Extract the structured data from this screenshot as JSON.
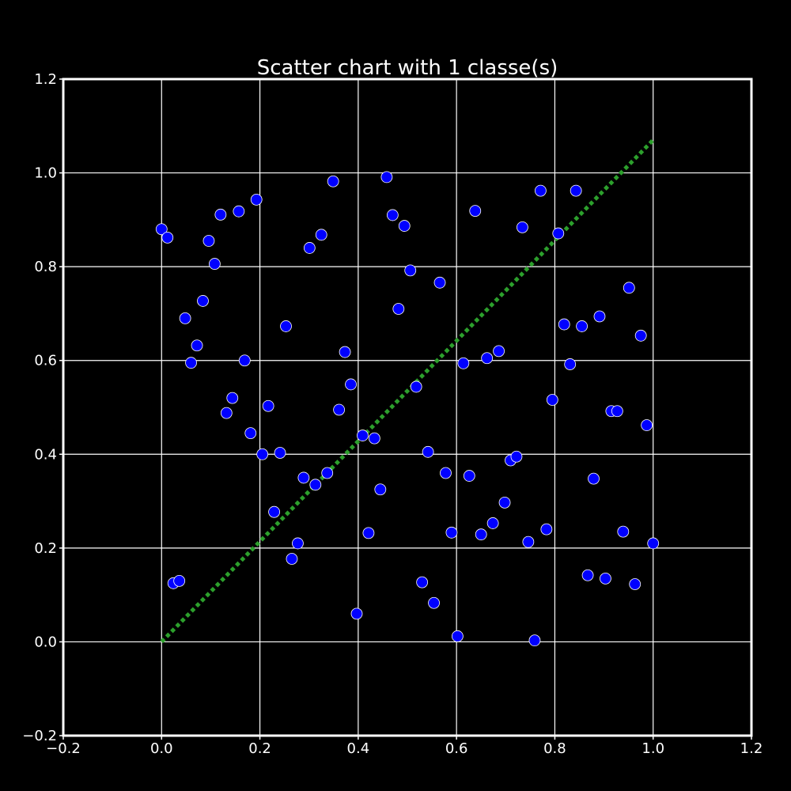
{
  "chart_data": {
    "type": "scatter",
    "title": "Scatter chart with 1 classe(s)",
    "xlabel": "",
    "ylabel": "",
    "xlim": [
      -0.2,
      1.2
    ],
    "ylim": [
      -0.2,
      1.2
    ],
    "grid": true,
    "x_ticks": [
      "−0.2",
      "0.0",
      "0.2",
      "0.4",
      "0.6",
      "0.8",
      "1.0",
      "1.2"
    ],
    "y_ticks": [
      "−0.2",
      "0.0",
      "0.2",
      "0.4",
      "0.6",
      "0.8",
      "1.0",
      "1.2"
    ],
    "colors": {
      "background": "#000000",
      "frame": "#ffffff",
      "grid": "#ffffff",
      "point_fill": "#0000ff",
      "point_edge": "#ffffff",
      "trend_line": "#2ca02c"
    },
    "trend_line": {
      "style": "dotted",
      "x": [
        0.0,
        1.0
      ],
      "y": [
        0.0,
        1.07
      ]
    },
    "series": [
      {
        "x": [
          0.0,
          0.012,
          0.024,
          0.036,
          0.048,
          0.06,
          0.072,
          0.084,
          0.096,
          0.108,
          0.12,
          0.132,
          0.144,
          0.157,
          0.169,
          0.181,
          0.193,
          0.205,
          0.217,
          0.229,
          0.241,
          0.253,
          0.265,
          0.277,
          0.289,
          0.301,
          0.313,
          0.325,
          0.337,
          0.349,
          0.361,
          0.373,
          0.385,
          0.397,
          0.409,
          0.421,
          0.433,
          0.445,
          0.458,
          0.47,
          0.482,
          0.494,
          0.506,
          0.518,
          0.53,
          0.542,
          0.554,
          0.566,
          0.578,
          0.59,
          0.602,
          0.614,
          0.626,
          0.638,
          0.65,
          0.662,
          0.674,
          0.686,
          0.698,
          0.71,
          0.722,
          0.734,
          0.746,
          0.759,
          0.771,
          0.783,
          0.795,
          0.807,
          0.819,
          0.831,
          0.843,
          0.855,
          0.867,
          0.879,
          0.891,
          0.903,
          0.915,
          0.927,
          0.939,
          0.951,
          0.963,
          0.975,
          0.987,
          1.0
        ],
        "y": [
          0.88,
          0.862,
          0.125,
          0.13,
          0.69,
          0.595,
          0.632,
          0.727,
          0.855,
          0.806,
          0.911,
          0.488,
          0.52,
          0.918,
          0.6,
          0.445,
          0.943,
          0.4,
          0.503,
          0.277,
          0.403,
          0.673,
          0.177,
          0.21,
          0.35,
          0.84,
          0.335,
          0.868,
          0.36,
          0.982,
          0.495,
          0.618,
          0.549,
          0.06,
          0.44,
          0.232,
          0.434,
          0.325,
          0.991,
          0.91,
          0.71,
          0.887,
          0.792,
          0.544,
          0.127,
          0.405,
          0.083,
          0.766,
          0.36,
          0.233,
          0.012,
          0.594,
          0.354,
          0.919,
          0.229,
          0.605,
          0.253,
          0.62,
          0.297,
          0.387,
          0.395,
          0.884,
          0.213,
          0.003,
          0.962,
          0.24,
          0.516,
          0.871,
          0.677,
          0.592,
          0.962,
          0.673,
          0.142,
          0.348,
          0.694,
          0.135,
          0.492,
          0.492,
          0.235,
          0.755,
          0.123,
          0.653,
          0.462,
          0.21
        ]
      }
    ]
  }
}
